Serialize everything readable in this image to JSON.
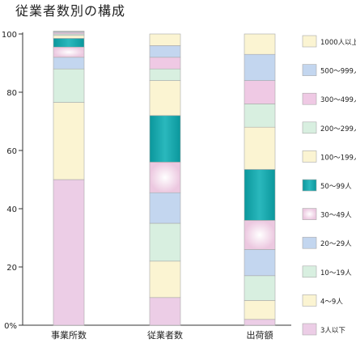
{
  "chart_data": {
    "type": "bar",
    "stacked": true,
    "title": "従業者数別の構成",
    "categories": [
      "事業所数",
      "従業者数",
      "出荷額"
    ],
    "y_ticks": [
      "0%",
      "20",
      "40",
      "60",
      "80",
      "100"
    ],
    "ylim": [
      0,
      100
    ],
    "legend_position": "right",
    "series": [
      {
        "name": "3人以下",
        "color": "#eccde6",
        "values": [
          50.0,
          9.5,
          2.0
        ]
      },
      {
        "name": "4～9人",
        "color": "#fbf4d2",
        "values": [
          26.5,
          12.5,
          6.5
        ]
      },
      {
        "name": "10～19人",
        "color": "#d8efe0",
        "values": [
          11.5,
          13.0,
          8.5
        ]
      },
      {
        "name": "20～29人",
        "color": "#c3d6ef",
        "values": [
          4.0,
          10.5,
          9.0
        ]
      },
      {
        "name": "30～49人",
        "color": "#f1d3e6",
        "values": [
          3.5,
          10.5,
          10.0
        ]
      },
      {
        "name": "50～99人",
        "color": "#11a6ac",
        "values": [
          3.0,
          16.0,
          17.5
        ]
      },
      {
        "name": "100～199人",
        "color": "#fbf4d2",
        "values": [
          1.0,
          12.0,
          14.5
        ]
      },
      {
        "name": "200～299人",
        "color": "#d8efe0",
        "values": [
          0.5,
          4.0,
          8.0
        ]
      },
      {
        "name": "300～499人",
        "color": "#efc9e4",
        "values": [
          0.5,
          4.0,
          8.0
        ]
      },
      {
        "name": "500～999人",
        "color": "#c3d6ef",
        "values": [
          0.3,
          4.0,
          9.0
        ]
      },
      {
        "name": "1000人以上",
        "color": "#fbf4d2",
        "values": [
          0.2,
          4.0,
          7.0
        ]
      }
    ]
  }
}
